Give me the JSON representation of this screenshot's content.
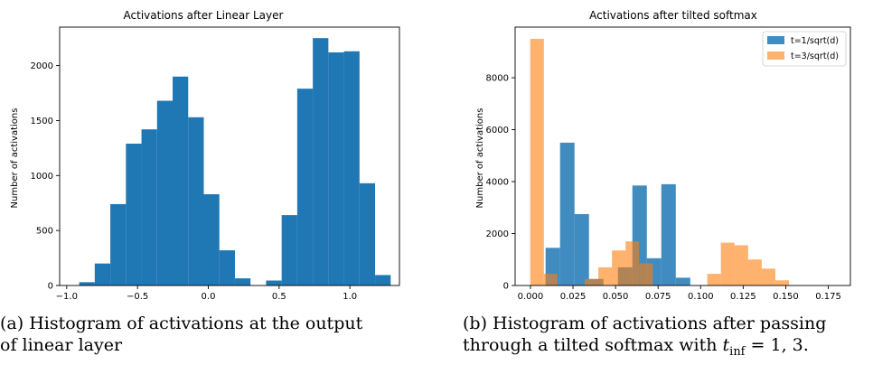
{
  "chart_data": [
    {
      "type": "bar",
      "title": "Activations after Linear Layer",
      "xlabel": "",
      "ylabel": "Number of activations",
      "xlim": [
        -1.05,
        1.35
      ],
      "ylim": [
        0,
        2350
      ],
      "xticks": [
        -1.0,
        -0.5,
        0.0,
        0.5,
        1.0
      ],
      "xtick_labels": [
        "−1.0",
        "−0.5",
        "0.0",
        "0.5",
        "1.0"
      ],
      "yticks": [
        0,
        500,
        1000,
        1500,
        2000
      ],
      "ytick_labels": [
        "0",
        "500",
        "1000",
        "1500",
        "2000"
      ],
      "bin_edges": [
        -0.912,
        -0.802,
        -0.692,
        -0.582,
        -0.472,
        -0.362,
        -0.252,
        -0.142,
        -0.032,
        0.078,
        0.188,
        0.298,
        0.408,
        0.518,
        0.628,
        0.738,
        0.848,
        0.958,
        1.068,
        1.178,
        1.288
      ],
      "series": [
        {
          "color": "#1f77b4",
          "alpha": 1.0,
          "values": [
            30,
            200,
            740,
            1290,
            1420,
            1680,
            1900,
            1530,
            830,
            320,
            65,
            0,
            45,
            640,
            1790,
            2250,
            2120,
            2130,
            930,
            95
          ]
        }
      ],
      "grid": false,
      "legend": null
    },
    {
      "type": "bar",
      "title": "Activations after tilted softmax",
      "xlabel": "",
      "ylabel": "Number of activations",
      "xlim": [
        -0.009,
        0.188
      ],
      "ylim": [
        0,
        9950
      ],
      "xticks": [
        0.0,
        0.025,
        0.05,
        0.075,
        0.1,
        0.125,
        0.15,
        0.175
      ],
      "xtick_labels": [
        "0.000",
        "0.025",
        "0.050",
        "0.075",
        "0.100",
        "0.125",
        "0.150",
        "0.175"
      ],
      "yticks": [
        0,
        2000,
        4000,
        6000,
        8000
      ],
      "ytick_labels": [
        "0",
        "2000",
        "4000",
        "6000",
        "8000"
      ],
      "legend": {
        "position": "upper-right",
        "entries": [
          "t=1/sqrt(d)",
          "t=3/sqrt(d)"
        ]
      },
      "series": [
        {
          "name": "t=1/sqrt(d)",
          "color": "#1f77b4",
          "alpha": 0.85,
          "bin_edges": [
            0.0089,
            0.0174,
            0.0259,
            0.0344,
            0.0429,
            0.0514,
            0.0599,
            0.0684,
            0.0769,
            0.0854,
            0.0939
          ],
          "values": [
            1450,
            5500,
            2750,
            250,
            0,
            700,
            3850,
            1050,
            3900,
            300
          ]
        },
        {
          "name": "t=3/sqrt(d)",
          "color": "#ff7f0e",
          "alpha": 0.6,
          "bin_edges": [
            -0.0001,
            0.0079,
            0.0159,
            0.0239,
            0.0319,
            0.0399,
            0.0479,
            0.0559,
            0.0639,
            0.0719,
            0.0799,
            0.0879,
            0.0959,
            0.1039,
            0.1119,
            0.1199,
            0.1279,
            0.1359,
            0.1439,
            0.1519,
            0.1599
          ],
          "values": [
            9500,
            450,
            0,
            0,
            250,
            700,
            1350,
            1700,
            850,
            0,
            0,
            0,
            0,
            450,
            1650,
            1550,
            1000,
            650,
            200,
            0
          ]
        }
      ],
      "grid": false
    }
  ],
  "captions": {
    "a": {
      "line1": "(a) Histogram of activations at the output",
      "line2": "of linear layer"
    },
    "b": {
      "line1": "(b) Histogram of activations after passing",
      "line2_prefix": "through a tilted softmax with ",
      "math_var": "t",
      "math_sub": "inf",
      "line2_suffix": " = 1, 3."
    }
  }
}
